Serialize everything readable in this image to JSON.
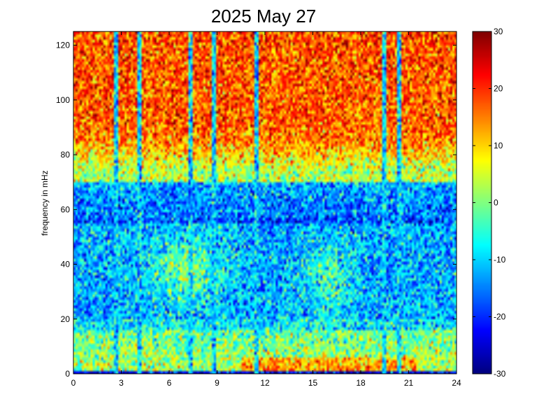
{
  "chart_data": {
    "type": "heatmap",
    "title": "2025 May 27",
    "xlabel": "",
    "ylabel": "frequency in mHz",
    "xlim": [
      0,
      24
    ],
    "ylim": [
      0,
      125
    ],
    "xticks": [
      0,
      3,
      6,
      9,
      12,
      15,
      18,
      21,
      24
    ],
    "yticks": [
      0,
      20,
      40,
      60,
      80,
      100,
      120
    ],
    "colorbar": {
      "min": -30,
      "max": 30,
      "ticks": [
        -30,
        -20,
        -10,
        0,
        10,
        20,
        30
      ],
      "colormap": "jet"
    },
    "vertical_streaks_hours": [
      2.7,
      4.1,
      7.3,
      8.8,
      11.5,
      19.5,
      20.4
    ],
    "strong_low_freq_band_hours": [
      10.5,
      21.5
    ]
  }
}
